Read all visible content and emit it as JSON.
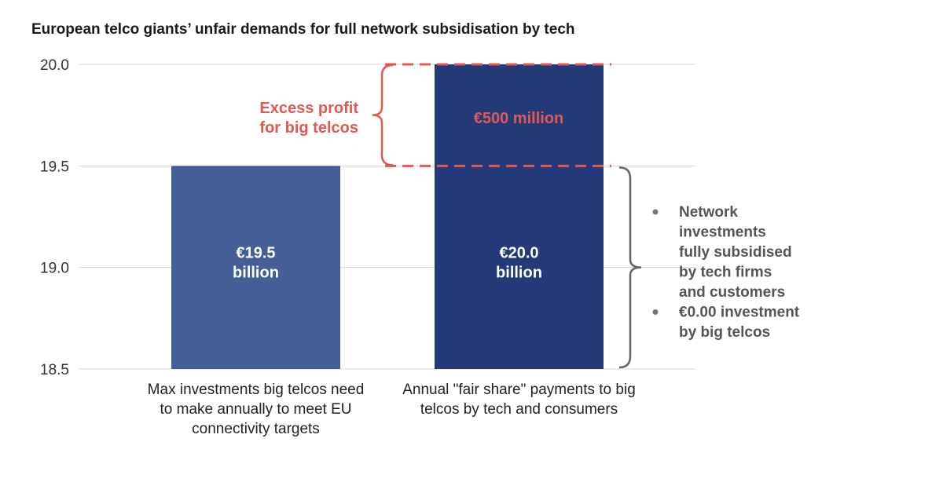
{
  "chart_data": {
    "type": "bar",
    "title": "European telco giants’ unfair demands for full network subsidisation by tech",
    "categories": [
      [
        "Max investments big telcos need",
        "to make annually to meet EU",
        "connectivity targets"
      ],
      [
        "Annual \"fair share\" payments to big",
        "telcos by tech and consumers"
      ]
    ],
    "values": [
      19.5,
      20.0
    ],
    "bar_colors": [
      "#445f96",
      "#243a78"
    ],
    "data_labels": [
      [
        "€19.5",
        "billion"
      ],
      [
        "€20.0",
        "billion"
      ]
    ],
    "ylim": [
      18.5,
      20.0
    ],
    "y_ticks": [
      "20.0",
      "19.5",
      "19.0",
      "18.5"
    ],
    "grid": true,
    "annotations": {
      "excess_label": [
        "Excess profit",
        "for big telcos"
      ],
      "excess_value": "€500 million",
      "excess_color": "#e05a55",
      "notes": [
        [
          "Network",
          "investments",
          "fully subsidised",
          "by tech firms",
          "and customers"
        ],
        [
          "€0.00 investment",
          "by big telcos"
        ]
      ],
      "note_color": "#555555"
    }
  }
}
